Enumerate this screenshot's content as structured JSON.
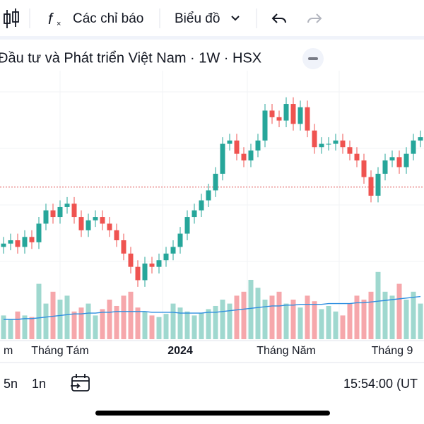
{
  "toolbar": {
    "indicators": "Các chỉ báo",
    "chart_type": "Biểu đồ"
  },
  "chart_data": {
    "type": "candlestick",
    "title": "Đầu tư và Phát triển Việt Nam · 1W · HSX",
    "ylim": [
      8,
      42
    ],
    "vlim": [
      0,
      100
    ],
    "up_color": "#26a69a",
    "down_color": "#ef5350",
    "up_volume_color": "#9fd8cf",
    "down_volume_color": "#f6a7ab",
    "ma_color": "#2f8fe0",
    "reference_line": 24.5,
    "reference_color": "#e05555",
    "open": [
      15.5,
      16.0,
      16.5,
      15.5,
      17.0,
      16.2,
      19.0,
      21.0,
      20.0,
      21.5,
      22.0,
      20.0,
      18.0,
      19.5,
      20.0,
      19.0,
      18.0,
      16.5,
      14.5,
      12.5,
      10.5,
      13.0,
      12.5,
      13.5,
      14.5,
      15.5,
      17.5,
      20.0,
      21.0,
      22.5,
      24.0,
      26.5,
      31.0,
      31.5,
      29.5,
      28.5,
      30.0,
      31.5,
      36.0,
      35.0,
      34.5,
      37.0,
      34.0,
      36.5,
      33.0,
      30.5,
      31.0,
      31.0,
      31.5,
      30.5,
      29.5,
      28.5,
      26.0,
      23.2,
      26.5,
      28.5,
      29.0,
      27.5,
      29.5,
      31.5
    ],
    "close": [
      16.0,
      16.5,
      15.5,
      17.0,
      16.2,
      19.0,
      21.0,
      20.0,
      21.5,
      22.0,
      20.0,
      18.0,
      19.5,
      20.0,
      19.0,
      18.0,
      16.5,
      14.5,
      12.5,
      10.5,
      13.0,
      12.5,
      13.5,
      14.5,
      15.5,
      17.5,
      20.0,
      21.0,
      22.5,
      24.0,
      26.5,
      31.0,
      31.5,
      29.5,
      28.5,
      30.0,
      31.5,
      36.0,
      35.0,
      34.5,
      37.0,
      34.0,
      36.5,
      33.0,
      30.5,
      31.0,
      31.0,
      31.5,
      30.5,
      29.5,
      28.5,
      26.0,
      23.2,
      26.5,
      28.5,
      29.0,
      27.5,
      29.5,
      31.5,
      32.0
    ],
    "high": [
      17.0,
      17.5,
      17.5,
      18.0,
      18.0,
      20.0,
      22.0,
      22.0,
      22.5,
      23.0,
      23.0,
      21.0,
      20.5,
      21.0,
      21.0,
      20.0,
      19.0,
      17.5,
      15.5,
      13.5,
      14.0,
      14.0,
      14.5,
      15.5,
      16.5,
      18.5,
      21.0,
      22.0,
      23.5,
      25.0,
      27.5,
      32.0,
      32.5,
      32.5,
      30.5,
      31.0,
      32.5,
      37.0,
      37.0,
      36.0,
      38.0,
      38.0,
      37.5,
      37.5,
      34.0,
      32.0,
      32.0,
      32.5,
      32.5,
      31.5,
      30.5,
      29.5,
      27.0,
      27.5,
      29.5,
      30.0,
      30.0,
      30.5,
      32.5,
      33.0
    ],
    "low": [
      14.5,
      15.0,
      14.5,
      14.5,
      15.2,
      15.2,
      18.0,
      19.0,
      19.0,
      20.5,
      19.0,
      17.0,
      17.0,
      18.5,
      18.0,
      17.0,
      15.5,
      13.5,
      11.5,
      9.5,
      9.5,
      11.5,
      11.5,
      12.5,
      13.5,
      14.5,
      16.5,
      19.0,
      20.0,
      21.5,
      23.0,
      25.5,
      30.0,
      28.5,
      27.5,
      27.5,
      29.0,
      30.5,
      34.0,
      33.5,
      33.5,
      33.0,
      33.0,
      32.0,
      29.5,
      29.5,
      30.0,
      30.0,
      29.5,
      28.5,
      27.5,
      25.0,
      22.2,
      22.2,
      25.5,
      27.5,
      26.5,
      26.5,
      28.5,
      30.5
    ],
    "volume": [
      30,
      25,
      35,
      30,
      28,
      70,
      45,
      60,
      50,
      55,
      35,
      40,
      45,
      30,
      38,
      50,
      42,
      55,
      60,
      40,
      35,
      30,
      28,
      32,
      45,
      40,
      35,
      30,
      33,
      38,
      42,
      50,
      45,
      55,
      60,
      75,
      65,
      50,
      55,
      60,
      45,
      50,
      40,
      55,
      48,
      38,
      42,
      35,
      30,
      45,
      55,
      50,
      60,
      85,
      60,
      55,
      70,
      50,
      60,
      45
    ],
    "volume_ma": [
      25,
      25,
      25,
      26,
      26,
      27,
      28,
      29,
      30,
      31,
      32,
      32,
      33,
      33,
      34,
      34,
      35,
      35,
      35,
      35,
      35,
      34,
      34,
      34,
      34,
      33,
      33,
      33,
      33,
      34,
      34,
      35,
      36,
      37,
      38,
      39,
      40,
      41,
      42,
      42,
      43,
      43,
      44,
      44,
      44,
      44,
      45,
      45,
      45,
      45,
      46,
      46,
      47,
      48,
      49,
      50,
      51,
      52,
      53,
      54
    ],
    "x_labels": [
      {
        "label": "m",
        "at": 0
      },
      {
        "label": "Tháng Tám",
        "at": 8
      },
      {
        "label": "2024",
        "at": 25
      },
      {
        "label": "Tháng Năm",
        "at": 40
      },
      {
        "label": "Tháng 9",
        "at": 55
      }
    ]
  },
  "bottom_bar": {
    "range_5d": "5n",
    "range_1d": "1n",
    "time": "15:54:00 (UT"
  }
}
